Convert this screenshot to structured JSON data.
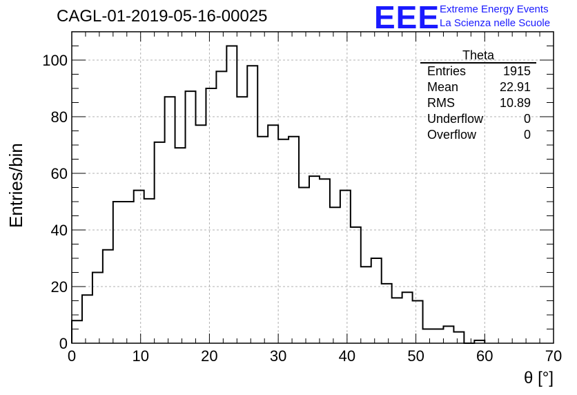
{
  "title": "CAGL-01-2019-05-16-00025",
  "logo": {
    "mark": "EEE",
    "line1": "Extreme Energy Events",
    "line2": "La Scienza nelle Scuole"
  },
  "stats": {
    "name": "Theta",
    "rows": [
      {
        "label": "Entries",
        "value": "1915"
      },
      {
        "label": "Mean",
        "value": "22.91"
      },
      {
        "label": "RMS",
        "value": "10.89"
      },
      {
        "label": "Underflow",
        "value": "0"
      },
      {
        "label": "Overflow",
        "value": "0"
      }
    ]
  },
  "chart_data": {
    "type": "histogram",
    "xlabel": "θ [°]",
    "ylabel": "Entries/bin",
    "xlim": [
      0,
      70
    ],
    "ylim": [
      0,
      110
    ],
    "bin_width": 1.5,
    "bin_edges_start": 0,
    "values": [
      8,
      17,
      25,
      33,
      50,
      50,
      54,
      51,
      71,
      87,
      69,
      89,
      77,
      90,
      96,
      105,
      87,
      98,
      73,
      77,
      72,
      73,
      55,
      59,
      58,
      48,
      54,
      41,
      27,
      30,
      21,
      16,
      18,
      15,
      5,
      5,
      6,
      4,
      0,
      1
    ],
    "x_ticks": [
      "0",
      "10",
      "20",
      "30",
      "40",
      "50",
      "60",
      "70"
    ],
    "y_ticks": [
      "0",
      "20",
      "40",
      "60",
      "80",
      "100"
    ],
    "grid": true,
    "colors": {
      "line": "#000000",
      "grid": "#b0b0b0",
      "logo": "#1a1aff"
    }
  }
}
